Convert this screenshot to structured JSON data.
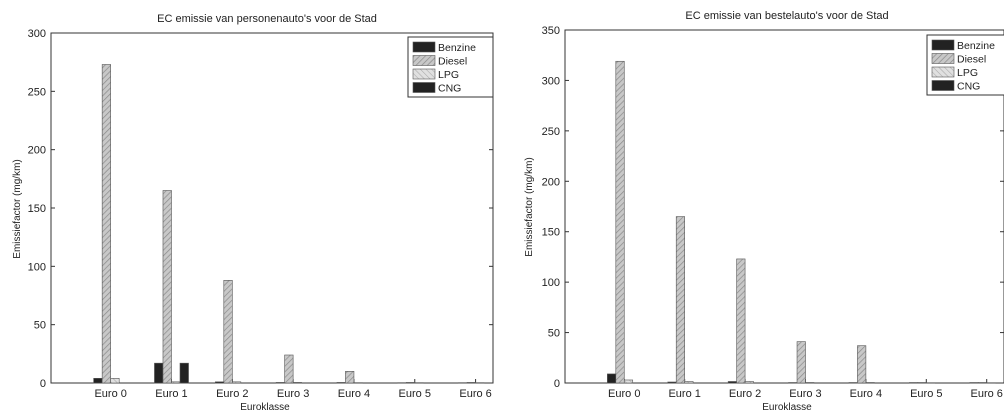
{
  "chart_data": [
    {
      "type": "bar",
      "title": "EC emissie van personenauto's voor de Stad",
      "xlabel": "Euroklasse",
      "ylabel": "Emissiefactor (mg/km)",
      "ylim": [
        0,
        300
      ],
      "yticks": [
        "0",
        "50",
        "100",
        "150",
        "200",
        "250",
        "300"
      ],
      "categories": [
        "Euro 0",
        "Euro 1",
        "Euro 2",
        "Euro 3",
        "Euro 4",
        "Euro 5",
        "Euro 6"
      ],
      "legend": "top-right",
      "series": [
        {
          "name": "Benzine",
          "values": [
            4,
            17,
            1,
            0.5,
            0.5,
            0.3,
            0.3
          ]
        },
        {
          "name": "Diesel",
          "values": [
            273,
            165,
            88,
            24,
            10,
            0.5,
            0.5
          ]
        },
        {
          "name": "LPG",
          "values": [
            4,
            1,
            1,
            0.5,
            0.3,
            0.3,
            0.3
          ]
        },
        {
          "name": "CNG",
          "values": [
            0,
            17,
            0,
            0,
            0,
            0,
            0
          ]
        }
      ]
    },
    {
      "type": "bar",
      "title": "EC emissie van bestelauto's voor de Stad",
      "xlabel": "Euroklasse",
      "ylabel": "Emissiefactor (mg/km)",
      "ylim": [
        0,
        350
      ],
      "yticks": [
        "0",
        "50",
        "100",
        "150",
        "200",
        "250",
        "300",
        "350"
      ],
      "categories": [
        "Euro 0",
        "Euro 1",
        "Euro 2",
        "Euro 3",
        "Euro 4",
        "Euro 5",
        "Euro 6"
      ],
      "legend": "top-right",
      "series": [
        {
          "name": "Benzine",
          "values": [
            9,
            1,
            1.5,
            0.5,
            0.5,
            0.5,
            0.5
          ]
        },
        {
          "name": "Diesel",
          "values": [
            319,
            165,
            123,
            41,
            37,
            0.5,
            0.5
          ]
        },
        {
          "name": "LPG",
          "values": [
            3,
            1.5,
            1.5,
            0.5,
            0.5,
            0.3,
            0.3
          ]
        },
        {
          "name": "CNG",
          "values": [
            0,
            0,
            0,
            0,
            0,
            0,
            0
          ]
        }
      ]
    }
  ],
  "colors": {
    "Benzine": "#222222",
    "Diesel": "#b8b8b8",
    "LPG": "#d4d4d4",
    "CNG": "#222222"
  }
}
